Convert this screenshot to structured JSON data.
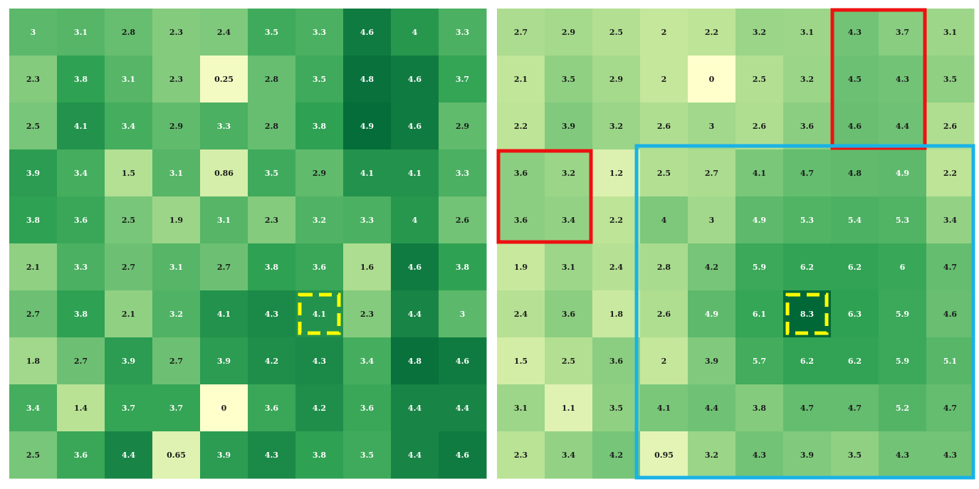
{
  "chart_data": [
    {
      "type": "heatmap",
      "values": [
        [
          "3",
          "3.1",
          "2.8",
          "2.3",
          "2.4",
          "3.5",
          "3.3",
          "4.6",
          "4",
          "3.3"
        ],
        [
          "2.3",
          "3.8",
          "3.1",
          "2.3",
          "0.25",
          "2.8",
          "3.5",
          "4.8",
          "4.6",
          "3.7"
        ],
        [
          "2.5",
          "4.1",
          "3.4",
          "2.9",
          "3.3",
          "2.8",
          "3.8",
          "4.9",
          "4.6",
          "2.9"
        ],
        [
          "3.9",
          "3.4",
          "1.5",
          "3.1",
          "0.86",
          "3.5",
          "2.9",
          "4.1",
          "4.1",
          "3.3"
        ],
        [
          "3.8",
          "3.6",
          "2.5",
          "1.9",
          "3.1",
          "2.3",
          "3.2",
          "3.3",
          "4",
          "2.6"
        ],
        [
          "2.1",
          "3.3",
          "2.7",
          "3.1",
          "2.7",
          "3.8",
          "3.6",
          "1.6",
          "4.6",
          "3.8"
        ],
        [
          "2.7",
          "3.8",
          "2.1",
          "3.2",
          "4.1",
          "4.3",
          "4.1",
          "2.3",
          "4.4",
          "3"
        ],
        [
          "1.8",
          "2.7",
          "3.9",
          "2.7",
          "3.9",
          "4.2",
          "4.3",
          "3.4",
          "4.8",
          "4.6"
        ],
        [
          "3.4",
          "1.4",
          "3.7",
          "3.7",
          "0",
          "3.6",
          "4.2",
          "3.6",
          "4.4",
          "4.4"
        ],
        [
          "2.5",
          "3.6",
          "4.4",
          "0.65",
          "3.9",
          "4.3",
          "3.8",
          "3.5",
          "4.4",
          "4.6"
        ]
      ],
      "color_min": 0,
      "color_max": 5,
      "highlights": [
        {
          "kind": "yellow-dashed",
          "rows": [
            6,
            6
          ],
          "cols": [
            6,
            6
          ],
          "color": "#ffff00"
        }
      ]
    },
    {
      "type": "heatmap",
      "values": [
        [
          "2.7",
          "2.9",
          "2.5",
          "2",
          "2.2",
          "3.2",
          "3.1",
          "4.3",
          "3.7",
          "3.1"
        ],
        [
          "2.1",
          "3.5",
          "2.9",
          "2",
          "0",
          "2.5",
          "3.2",
          "4.5",
          "4.3",
          "3.5"
        ],
        [
          "2.2",
          "3.9",
          "3.2",
          "2.6",
          "3",
          "2.6",
          "3.6",
          "4.6",
          "4.4",
          "2.6"
        ],
        [
          "3.6",
          "3.2",
          "1.2",
          "2.5",
          "2.7",
          "4.1",
          "4.7",
          "4.8",
          "4.9",
          "2.2"
        ],
        [
          "3.6",
          "3.4",
          "2.2",
          "4",
          "3",
          "4.9",
          "5.3",
          "5.4",
          "5.3",
          "3.4"
        ],
        [
          "1.9",
          "3.1",
          "2.4",
          "2.8",
          "4.2",
          "5.9",
          "6.2",
          "6.2",
          "6",
          "4.7"
        ],
        [
          "2.4",
          "3.6",
          "1.8",
          "2.6",
          "4.9",
          "6.1",
          "8.3",
          "6.3",
          "5.9",
          "4.6"
        ],
        [
          "1.5",
          "2.5",
          "3.6",
          "2",
          "3.9",
          "5.7",
          "6.2",
          "6.2",
          "5.9",
          "5.1"
        ],
        [
          "3.1",
          "1.1",
          "3.5",
          "4.1",
          "4.4",
          "3.8",
          "4.7",
          "4.7",
          "5.2",
          "4.7"
        ],
        [
          "2.3",
          "3.4",
          "4.2",
          "0.95",
          "3.2",
          "4.3",
          "3.9",
          "3.5",
          "4.3",
          "4.3"
        ]
      ],
      "color_min": 0,
      "color_max": 8.3,
      "highlights": [
        {
          "kind": "red-box",
          "rows": [
            0,
            2
          ],
          "cols": [
            7,
            8
          ],
          "color": "#ee1111"
        },
        {
          "kind": "red-box",
          "rows": [
            3,
            4
          ],
          "cols": [
            0,
            1
          ],
          "color": "#ee1111"
        },
        {
          "kind": "blue-box",
          "rows": [
            3,
            9
          ],
          "cols": [
            3,
            9
          ],
          "color": "#19b2e6"
        },
        {
          "kind": "yellow-dashed",
          "rows": [
            6,
            6
          ],
          "cols": [
            6,
            6
          ],
          "color": "#ffff00"
        }
      ]
    }
  ],
  "colors": {
    "scale": [
      "#ffffcc",
      "#c2e699",
      "#78c679",
      "#31a354",
      "#006837"
    ]
  }
}
